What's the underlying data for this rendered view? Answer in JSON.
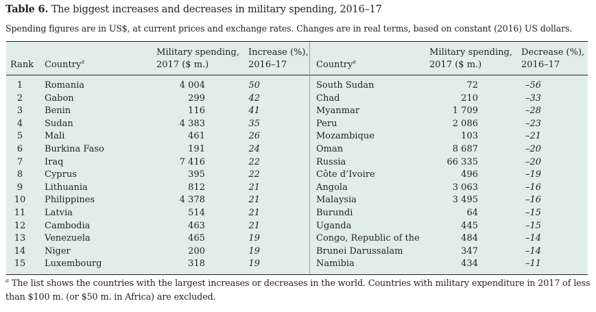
{
  "title": {
    "label": "Table 6.",
    "text": "The biggest increases and decreases in military spending, 2016–17"
  },
  "subtitle": "Spending figures are in US$, at current prices and exchange rates. Changes are in real terms, based on constant (2016) US dollars.",
  "headers": {
    "rank": "Rank",
    "country": "Country",
    "footnote_marker": "a",
    "spending_line1": "Military spending,",
    "spending_line2": "2017 ($ m.)",
    "increase_line1": "Increase (%),",
    "increase_line2": "2016–17",
    "decrease_line1": "Decrease (%),",
    "decrease_line2": "2016–17"
  },
  "rows": [
    {
      "rank": "1",
      "inc_country": "Romania",
      "inc_spending": "4 004",
      "increase": "50",
      "dec_country": "South Sudan",
      "dec_spending": "72",
      "decrease": "–56"
    },
    {
      "rank": "2",
      "inc_country": "Gabon",
      "inc_spending": "299",
      "increase": "42",
      "dec_country": "Chad",
      "dec_spending": "210",
      "decrease": "–33"
    },
    {
      "rank": "3",
      "inc_country": "Benin",
      "inc_spending": "116",
      "increase": "41",
      "dec_country": "Myanmar",
      "dec_spending": "1 709",
      "decrease": "–28"
    },
    {
      "rank": "4",
      "inc_country": "Sudan",
      "inc_spending": "4 383",
      "increase": "35",
      "dec_country": "Peru",
      "dec_spending": "2 086",
      "decrease": "–23"
    },
    {
      "rank": "5",
      "inc_country": "Mali",
      "inc_spending": "461",
      "increase": "26",
      "dec_country": "Mozambique",
      "dec_spending": "103",
      "decrease": "–21"
    },
    {
      "rank": "6",
      "inc_country": "Burkina Faso",
      "inc_spending": "191",
      "increase": "24",
      "dec_country": "Oman",
      "dec_spending": "8 687",
      "decrease": "–20"
    },
    {
      "rank": "7",
      "inc_country": "Iraq",
      "inc_spending": "7 416",
      "increase": "22",
      "dec_country": "Russia",
      "dec_spending": "66 335",
      "decrease": "–20"
    },
    {
      "rank": "8",
      "inc_country": "Cyprus",
      "inc_spending": "395",
      "increase": "22",
      "dec_country": "Côte d’Ivoire",
      "dec_spending": "496",
      "decrease": "–19"
    },
    {
      "rank": "9",
      "inc_country": "Lithuania",
      "inc_spending": "812",
      "increase": "21",
      "dec_country": "Angola",
      "dec_spending": "3 063",
      "decrease": "–16"
    },
    {
      "rank": "10",
      "inc_country": "Philippines",
      "inc_spending": "4 378",
      "increase": "21",
      "dec_country": "Malaysia",
      "dec_spending": "3 495",
      "decrease": "–16"
    },
    {
      "rank": "11",
      "inc_country": "Latvia",
      "inc_spending": "514",
      "increase": "21",
      "dec_country": "Burundi",
      "dec_spending": "64",
      "decrease": "–15"
    },
    {
      "rank": "12",
      "inc_country": "Cambodia",
      "inc_spending": "463",
      "increase": "21",
      "dec_country": "Uganda",
      "dec_spending": "445",
      "decrease": "–15"
    },
    {
      "rank": "13",
      "inc_country": "Venezuela",
      "inc_spending": "465",
      "increase": "19",
      "dec_country": "Congo, Republic of the",
      "dec_spending": "484",
      "decrease": "–14"
    },
    {
      "rank": "14",
      "inc_country": "Niger",
      "inc_spending": "200",
      "increase": "19",
      "dec_country": "Brunei Darussalam",
      "dec_spending": "347",
      "decrease": "–14"
    },
    {
      "rank": "15",
      "inc_country": "Luxembourg",
      "inc_spending": "318",
      "increase": "19",
      "dec_country": "Namibia",
      "dec_spending": "434",
      "decrease": "–11"
    }
  ],
  "footnote": {
    "marker": "a",
    "text": " The list shows the countries with the largest increases or decreases in the world. Countries with military expenditure in 2017 of less than $100 m. (or $50 m. in Africa) are excluded."
  }
}
